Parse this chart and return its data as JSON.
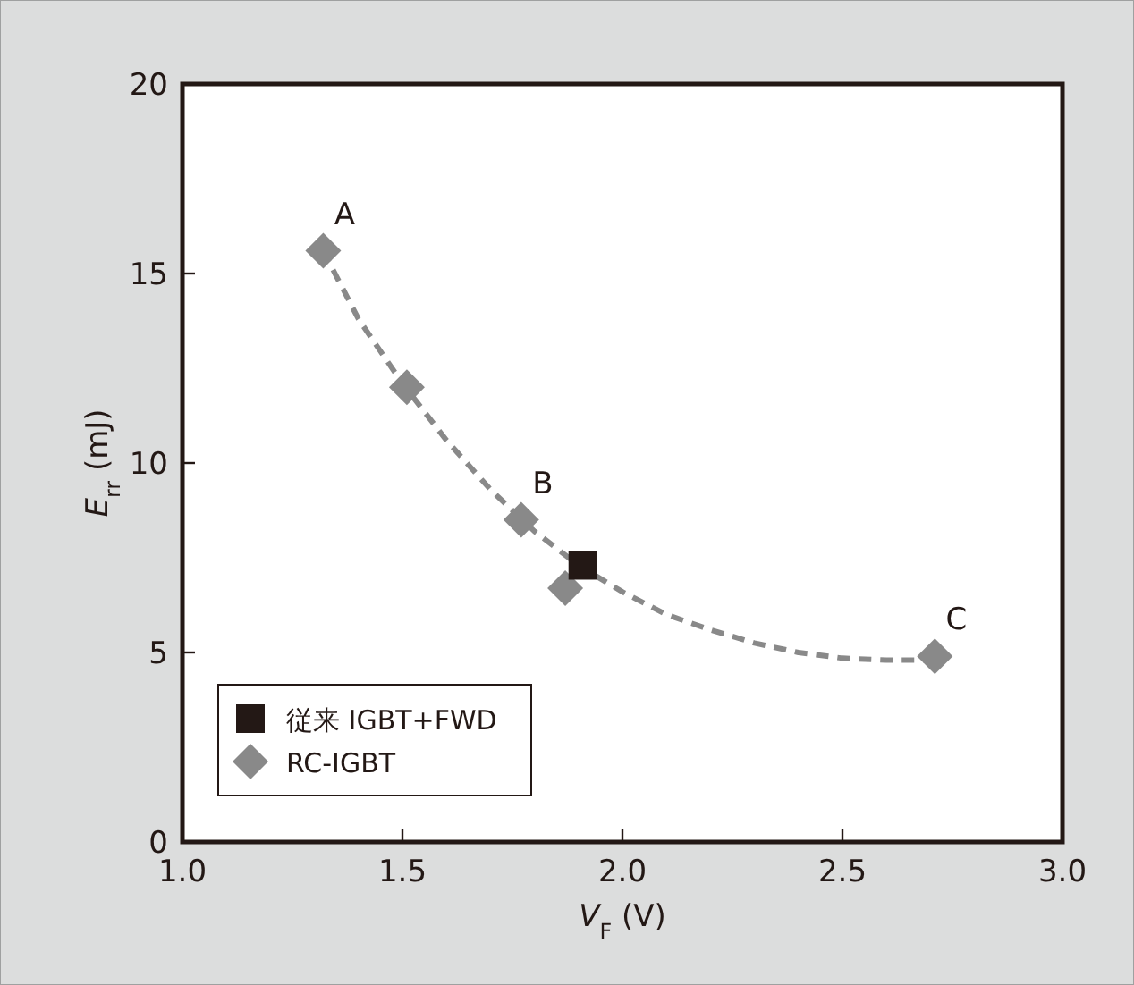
{
  "chart_data": {
    "type": "scatter",
    "xlabel": "*V*$_{F}$ (V)",
    "ylabel": "*E*$_{rr}$ (mJ)",
    "xlim": [
      1.0,
      3.0
    ],
    "ylim": [
      0,
      20
    ],
    "xticks": [
      {
        "value": 1.0,
        "label": "1.0"
      },
      1.5,
      {
        "value": 2.0,
        "label": "2.0"
      },
      2.5,
      {
        "value": 3.0,
        "label": "3.0"
      }
    ],
    "yticks": [
      0,
      5,
      10,
      15,
      20
    ],
    "grid": false,
    "legend": "bottom left",
    "series": [
      {
        "name": "従来 IGBT+FWD",
        "color": "#231815",
        "marker": "square",
        "x": [
          1.91
        ],
        "values": [
          7.3
        ]
      },
      {
        "name": "RC-IGBT",
        "color": "#898989",
        "marker": "diamond",
        "x": [
          1.32,
          1.51,
          1.77,
          1.87,
          2.71
        ],
        "values": [
          15.6,
          12.0,
          8.5,
          6.7,
          4.9
        ]
      },
      {
        "type": "line",
        "color": "#898989",
        "line_style": "dashed",
        "marker": "none",
        "x": [
          1.32,
          1.4,
          1.5,
          1.6,
          1.7,
          1.8,
          1.9,
          2.0,
          2.1,
          2.2,
          2.3,
          2.4,
          2.5,
          2.6,
          2.7
        ],
        "values": [
          15.6,
          13.8,
          12.1,
          10.6,
          9.3,
          8.2,
          7.3,
          6.6,
          6.0,
          5.6,
          5.25,
          5.0,
          4.85,
          4.8,
          4.8
        ]
      }
    ],
    "annotations": [
      {
        "text": "A",
        "x": 1.32,
        "y": 15.6
      },
      {
        "text": "B",
        "x": 1.77,
        "y": 8.5
      },
      {
        "text": "C",
        "x": 2.71,
        "y": 4.9
      }
    ]
  }
}
